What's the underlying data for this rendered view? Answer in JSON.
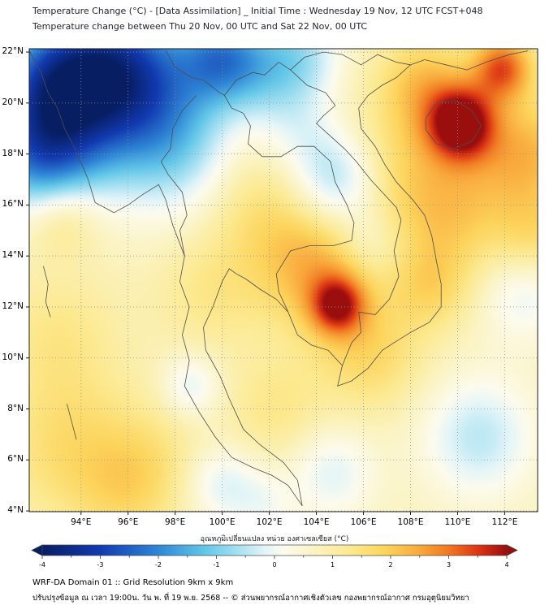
{
  "footer": {
    "line1": "WRF-DA Domain 01 :: Grid Resolution 9km x 9km",
    "line2": "ปรับปรุงข้อมูล ณ เวลา 19:00น. วัน พ. ที่ 19 พ.ย. 2568 -- © ส่วนพยากรณ์อากาศเชิงตัวเลข กองพยากรณ์อากาศ กรมอุตุนิยมวิทยา"
  },
  "chart_data": {
    "type": "heatmap",
    "title": "Temperature Change (°C) - [Data Assimilation] _ Initial Time : Wednesday 19 Nov, 12 UTC FCST+048",
    "subtitle": "Temperature change between Thu 20 Nov, 00 UTC and Sat 22 Nov, 00 UTC",
    "units": "°C",
    "x_axis": {
      "name": "longitude",
      "range": [
        91.8,
        113.4
      ],
      "tick_values": [
        94,
        96,
        98,
        100,
        102,
        104,
        106,
        108,
        110,
        112
      ],
      "tick_labels": [
        "94°E",
        "96°E",
        "98°E",
        "100°E",
        "102°E",
        "104°E",
        "106°E",
        "108°E",
        "110°E",
        "112°E"
      ]
    },
    "y_axis": {
      "name": "latitude",
      "range": [
        3.97,
        22.13
      ],
      "tick_values": [
        22,
        20,
        18,
        16,
        14,
        12,
        10,
        8,
        6,
        4
      ],
      "tick_labels": [
        "22°N",
        "20°N",
        "18°N",
        "16°N",
        "14°N",
        "12°N",
        "10°N",
        "8°N",
        "6°N",
        "4°N"
      ]
    },
    "grid": "dotted",
    "colorbar": {
      "label": "อุณหภูมิเปลี่ยนแปลง หน่วย องศาเซลเซียส (°C)",
      "range": [
        -4,
        4
      ],
      "tick_values": [
        -4,
        -3,
        -2,
        -1,
        0,
        1,
        2,
        3,
        4
      ],
      "stops": [
        [
          -4,
          "#071e63"
        ],
        [
          -3,
          "#123ab0"
        ],
        [
          -2,
          "#2f86d6"
        ],
        [
          -1.2,
          "#62c6e8"
        ],
        [
          -0.6,
          "#a9e2f2"
        ],
        [
          -0.15,
          "#e4f5f8"
        ],
        [
          0.15,
          "#fcfbee"
        ],
        [
          0.7,
          "#fbf3c2"
        ],
        [
          1.3,
          "#fce98f"
        ],
        [
          1.9,
          "#fcd45c"
        ],
        [
          2.5,
          "#f9a83b"
        ],
        [
          3,
          "#f07822"
        ],
        [
          3.5,
          "#dc3514"
        ],
        [
          4,
          "#9a0e0e"
        ]
      ]
    },
    "features": [
      {
        "region": "Northwest (Myanmar / Bay of Bengal coast)",
        "change_c": -2.0
      },
      {
        "region": "Northern edge 99E-104E",
        "change_c": -1.5
      },
      {
        "region": "Hainan / Gulf of Tonkin hotspot near 110E,19N",
        "change_c": 3.8
      },
      {
        "region": "Upper-right corner near 112E,21.5N",
        "change_c": 3.0
      },
      {
        "region": "Southern Vietnam / Cambodia hotspot near 105E,12N",
        "change_c": 3.2
      },
      {
        "region": "Central Thailand and Indochina",
        "change_c": 1.2
      },
      {
        "region": "Central-east pale patch near 105E,17N",
        "change_c": -0.5
      },
      {
        "region": "Far south / lower Gulf of Thailand",
        "change_c": 0.0
      },
      {
        "region": "Bottom-right sea near 111E,7N",
        "change_c": -0.5
      }
    ],
    "field": {
      "base": 0.75,
      "blobs": [
        [
          95.2,
          21.6,
          2.0,
          -2.8
        ],
        [
          92.6,
          20.8,
          1.6,
          -2.0
        ],
        [
          92.3,
          18.0,
          1.6,
          -2.3
        ],
        [
          94.0,
          19.5,
          2.2,
          -1.5
        ],
        [
          97.3,
          20.0,
          2.0,
          -1.6
        ],
        [
          99.9,
          21.8,
          1.2,
          -2.0
        ],
        [
          101.8,
          21.4,
          1.4,
          -1.3
        ],
        [
          103.6,
          21.9,
          1.2,
          -0.9
        ],
        [
          98.5,
          17.5,
          1.8,
          -0.9
        ],
        [
          104.9,
          16.9,
          1.4,
          -1.8
        ],
        [
          103.3,
          19.0,
          1.3,
          -0.7
        ],
        [
          106.3,
          14.5,
          1.0,
          -0.7
        ],
        [
          98.7,
          8.9,
          0.9,
          -0.9
        ],
        [
          99.9,
          5.1,
          1.1,
          -0.9
        ],
        [
          104.7,
          5.5,
          1.3,
          -0.9
        ],
        [
          110.9,
          6.9,
          1.7,
          -1.2
        ],
        [
          112.8,
          12.4,
          1.3,
          -0.8
        ],
        [
          101.7,
          4.3,
          1.0,
          -0.6
        ],
        [
          110.15,
          19.2,
          1.0,
          3.4
        ],
        [
          111.9,
          21.4,
          0.9,
          2.4
        ],
        [
          108.6,
          20.8,
          1.3,
          1.2
        ],
        [
          112.9,
          18.0,
          1.6,
          1.5
        ],
        [
          107.8,
          17.2,
          2.2,
          1.1
        ],
        [
          110.0,
          15.5,
          1.6,
          0.8
        ],
        [
          113.3,
          14.8,
          1.2,
          0.8
        ],
        [
          104.9,
          12.05,
          0.8,
          2.4
        ],
        [
          104.2,
          13.2,
          1.6,
          1.1
        ],
        [
          103.0,
          14.8,
          2.0,
          0.8
        ],
        [
          106.3,
          10.2,
          1.6,
          1.0
        ],
        [
          108.9,
          12.8,
          1.2,
          0.9
        ],
        [
          100.8,
          16.5,
          1.8,
          0.5
        ],
        [
          99.5,
          12.5,
          1.6,
          0.55
        ],
        [
          93.2,
          15.6,
          1.1,
          0.9
        ],
        [
          93.0,
          10.8,
          1.8,
          0.6
        ],
        [
          93.5,
          6.5,
          2.0,
          0.9
        ],
        [
          97.0,
          6.0,
          1.6,
          0.6
        ],
        [
          102.3,
          8.0,
          1.5,
          0.6
        ],
        [
          95.8,
          4.5,
          1.5,
          0.6
        ]
      ]
    },
    "boundaries": [
      {
        "name": "coastline-west",
        "points": [
          [
            91.8,
            22.05
          ],
          [
            92.3,
            21.2
          ],
          [
            92.6,
            20.4
          ],
          [
            93.0,
            19.8
          ],
          [
            93.3,
            19.0
          ],
          [
            93.8,
            18.1
          ],
          [
            94.3,
            17.0
          ],
          [
            94.6,
            16.1
          ],
          [
            95.4,
            15.7
          ],
          [
            96.0,
            16.0
          ],
          [
            96.6,
            16.4
          ],
          [
            97.3,
            16.8
          ],
          [
            97.6,
            16.2
          ],
          [
            97.9,
            15.2
          ],
          [
            98.4,
            14.0
          ],
          [
            98.2,
            13.0
          ],
          [
            98.6,
            12.0
          ],
          [
            98.3,
            10.9
          ],
          [
            98.6,
            9.9
          ],
          [
            98.4,
            8.9
          ],
          [
            99.0,
            7.9
          ],
          [
            99.7,
            6.9
          ],
          [
            100.4,
            6.1
          ],
          [
            101.3,
            5.7
          ],
          [
            102.1,
            5.4
          ],
          [
            102.8,
            5.0
          ],
          [
            103.4,
            4.2
          ]
        ]
      },
      {
        "name": "coastline-gulf-vietnam-china",
        "points": [
          [
            103.4,
            4.2
          ],
          [
            103.2,
            5.2
          ],
          [
            102.6,
            5.9
          ],
          [
            101.6,
            6.6
          ],
          [
            100.9,
            7.2
          ],
          [
            100.3,
            8.4
          ],
          [
            99.9,
            9.3
          ],
          [
            99.3,
            10.3
          ],
          [
            99.2,
            11.2
          ],
          [
            99.6,
            12.0
          ],
          [
            100.0,
            13.0
          ],
          [
            100.3,
            13.5
          ],
          [
            100.6,
            13.3
          ],
          [
            101.0,
            13.1
          ],
          [
            101.6,
            12.7
          ],
          [
            102.3,
            12.3
          ],
          [
            102.8,
            11.8
          ],
          [
            103.2,
            10.9
          ],
          [
            103.8,
            10.5
          ],
          [
            104.5,
            10.3
          ],
          [
            105.1,
            9.7
          ],
          [
            104.9,
            8.9
          ],
          [
            105.5,
            9.1
          ],
          [
            106.2,
            9.6
          ],
          [
            106.8,
            10.3
          ],
          [
            107.3,
            10.6
          ],
          [
            108.0,
            11.0
          ],
          [
            108.8,
            11.4
          ],
          [
            109.3,
            12.0
          ],
          [
            109.3,
            12.9
          ],
          [
            109.1,
            13.8
          ],
          [
            108.9,
            14.8
          ],
          [
            108.6,
            15.6
          ],
          [
            108.1,
            16.2
          ],
          [
            107.4,
            16.9
          ],
          [
            106.9,
            17.6
          ],
          [
            106.5,
            18.3
          ],
          [
            105.9,
            19.0
          ],
          [
            105.8,
            19.8
          ],
          [
            106.2,
            20.3
          ],
          [
            106.8,
            20.7
          ],
          [
            107.4,
            21.0
          ],
          [
            108.0,
            21.5
          ],
          [
            108.6,
            21.7
          ],
          [
            109.5,
            21.5
          ],
          [
            110.4,
            21.3
          ],
          [
            111.2,
            21.6
          ],
          [
            112.2,
            21.9
          ],
          [
            113.0,
            22.05
          ]
        ]
      },
      {
        "name": "hainan-island",
        "points": [
          [
            108.65,
            19.4
          ],
          [
            109.1,
            20.0
          ],
          [
            109.9,
            20.1
          ],
          [
            110.6,
            19.7
          ],
          [
            111.0,
            19.1
          ],
          [
            110.6,
            18.5
          ],
          [
            109.8,
            18.2
          ],
          [
            109.1,
            18.4
          ],
          [
            108.65,
            18.95
          ],
          [
            108.65,
            19.4
          ]
        ]
      },
      {
        "name": "border-thailand-myanmar",
        "points": [
          [
            98.9,
            20.3
          ],
          [
            98.3,
            19.7
          ],
          [
            97.9,
            19.0
          ],
          [
            97.8,
            18.2
          ],
          [
            97.4,
            17.7
          ],
          [
            97.7,
            17.2
          ],
          [
            98.3,
            16.5
          ],
          [
            98.5,
            15.6
          ],
          [
            98.2,
            15.0
          ],
          [
            98.4,
            14.0
          ]
        ]
      },
      {
        "name": "border-myanmar-laos-north",
        "points": [
          [
            97.6,
            22.05
          ],
          [
            98.0,
            21.4
          ],
          [
            98.7,
            21.0
          ],
          [
            99.2,
            20.9
          ],
          [
            99.9,
            20.4
          ],
          [
            100.1,
            20.3
          ]
        ]
      },
      {
        "name": "border-thailand-laos",
        "points": [
          [
            100.1,
            20.3
          ],
          [
            100.4,
            19.8
          ],
          [
            100.9,
            19.6
          ],
          [
            101.2,
            19.1
          ],
          [
            101.1,
            18.4
          ],
          [
            101.7,
            17.9
          ],
          [
            102.5,
            17.9
          ],
          [
            103.2,
            18.3
          ],
          [
            103.9,
            18.3
          ],
          [
            104.6,
            17.7
          ],
          [
            104.8,
            16.9
          ],
          [
            105.3,
            16.0
          ],
          [
            105.6,
            15.3
          ],
          [
            105.5,
            14.6
          ]
        ]
      },
      {
        "name": "border-laos-vietnam",
        "points": [
          [
            100.1,
            20.3
          ],
          [
            100.6,
            20.9
          ],
          [
            101.3,
            21.2
          ],
          [
            101.8,
            21.1
          ],
          [
            102.4,
            21.6
          ],
          [
            102.9,
            21.3
          ],
          [
            103.6,
            20.7
          ],
          [
            104.4,
            20.4
          ],
          [
            104.8,
            19.9
          ],
          [
            104.3,
            19.5
          ],
          [
            104.0,
            19.2
          ],
          [
            104.6,
            18.7
          ],
          [
            105.2,
            18.2
          ],
          [
            105.7,
            17.7
          ],
          [
            106.3,
            17.0
          ],
          [
            106.9,
            16.4
          ],
          [
            107.4,
            15.9
          ],
          [
            107.6,
            15.4
          ]
        ]
      },
      {
        "name": "border-thailand-cambodia",
        "points": [
          [
            102.8,
            11.8
          ],
          [
            102.4,
            12.6
          ],
          [
            102.3,
            13.3
          ],
          [
            102.9,
            14.2
          ],
          [
            103.7,
            14.4
          ],
          [
            104.7,
            14.4
          ],
          [
            105.5,
            14.6
          ]
        ]
      },
      {
        "name": "border-cambodia-vietnam",
        "points": [
          [
            105.1,
            9.7
          ],
          [
            105.5,
            10.6
          ],
          [
            105.9,
            11.0
          ],
          [
            105.8,
            11.8
          ],
          [
            106.5,
            11.7
          ],
          [
            107.1,
            12.3
          ],
          [
            107.5,
            13.2
          ],
          [
            107.3,
            14.2
          ],
          [
            107.6,
            15.4
          ]
        ]
      },
      {
        "name": "border-vietnam-china",
        "points": [
          [
            102.9,
            21.3
          ],
          [
            103.5,
            21.8
          ],
          [
            104.3,
            22.0
          ],
          [
            105.1,
            21.9
          ],
          [
            105.9,
            21.5
          ],
          [
            106.6,
            21.9
          ],
          [
            107.4,
            21.6
          ],
          [
            108.0,
            21.5
          ]
        ]
      },
      {
        "name": "andaman-islands",
        "points": [
          [
            92.4,
            13.6
          ],
          [
            92.6,
            12.9
          ],
          [
            92.5,
            12.2
          ],
          [
            92.7,
            11.6
          ]
        ]
      },
      {
        "name": "nicobar-islands",
        "points": [
          [
            93.4,
            8.2
          ],
          [
            93.6,
            7.5
          ],
          [
            93.8,
            6.8
          ]
        ]
      }
    ]
  }
}
